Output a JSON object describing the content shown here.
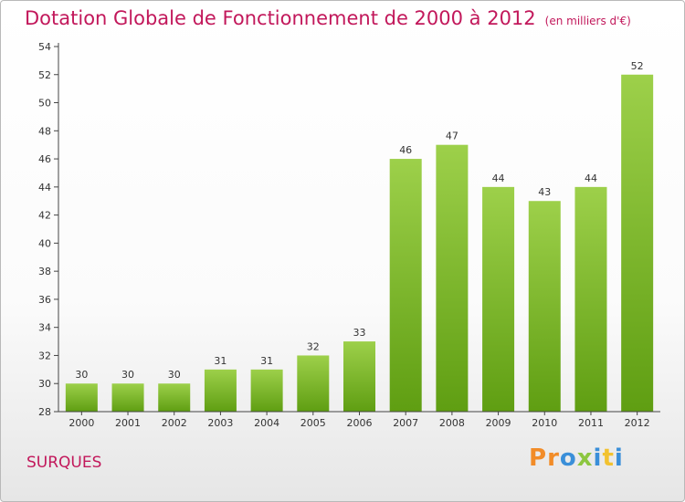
{
  "header": {
    "title": "Dotation Globale de Fonctionnement de 2000 à 2012",
    "subtitle": "(en milliers d'€)"
  },
  "footer": {
    "commune": "SURQUES",
    "logo_letters": [
      {
        "char": "P",
        "color": "#f28c28"
      },
      {
        "char": "r",
        "color": "#f28c28"
      },
      {
        "char": "o",
        "color": "#3a8fd9"
      },
      {
        "char": "x",
        "color": "#8cc63f"
      },
      {
        "char": "i",
        "color": "#3a8fd9"
      },
      {
        "char": "t",
        "color": "#f2c230"
      },
      {
        "char": "i",
        "color": "#3a8fd9"
      }
    ]
  },
  "colors": {
    "title": "#c2185b",
    "bar_top": "#9dd04a",
    "bar_bottom": "#5f9e12",
    "axis": "#444444",
    "grid": "#d9d9d9"
  },
  "chart_data": {
    "type": "bar",
    "title": "Dotation Globale de Fonctionnement de 2000 à 2012",
    "subtitle": "(en milliers d'€)",
    "xlabel": "",
    "ylabel": "",
    "categories": [
      "2000",
      "2001",
      "2002",
      "2003",
      "2004",
      "2005",
      "2006",
      "2007",
      "2008",
      "2009",
      "2010",
      "2011",
      "2012"
    ],
    "values": [
      30,
      30,
      30,
      31,
      31,
      32,
      33,
      46,
      47,
      44,
      43,
      44,
      52
    ],
    "ylim": [
      28,
      54
    ],
    "yticks": [
      28,
      30,
      32,
      34,
      36,
      38,
      40,
      42,
      44,
      46,
      48,
      50,
      52,
      54
    ],
    "grid": false,
    "legend": "none"
  }
}
